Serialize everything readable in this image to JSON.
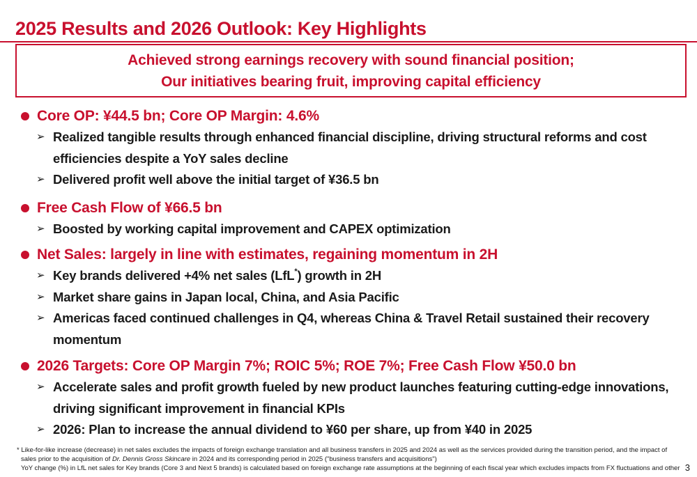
{
  "title": "2025 Results and 2026 Outlook: Key Highlights",
  "highlight": {
    "line1": "Achieved strong earnings recovery with sound financial position;",
    "line2": "Our initiatives bearing fruit, improving capital efficiency"
  },
  "sections": [
    {
      "heading": "Core OP: ¥44.5 bn; Core OP Margin: 4.6%",
      "bullets": [
        {
          "text": "Realized tangible results through enhanced financial discipline, driving structural reforms and cost efficiencies despite a YoY sales decline"
        },
        {
          "text": "Delivered profit well above the initial target of ¥36.5 bn"
        }
      ]
    },
    {
      "heading": "Free Cash Flow of ¥66.5 bn",
      "bullets": [
        {
          "text": "Boosted by working capital improvement and CAPEX optimization"
        }
      ]
    },
    {
      "heading": "Net Sales: largely in line with estimates, regaining momentum in 2H",
      "bullets": [
        {
          "text_before": "Key brands delivered +4% net sales (LfL",
          "sup": "*",
          "text_after": ") growth in 2H"
        },
        {
          "text": "Market share gains in Japan local, China, and Asia Pacific"
        },
        {
          "text": "Americas faced continued challenges in Q4, whereas China & Travel Retail sustained their recovery momentum"
        }
      ]
    },
    {
      "heading": "2026 Targets: Core OP Margin 7%; ROIC 5%; ROE 7%; Free Cash Flow ¥50.0 bn",
      "bullets": [
        {
          "text": "Accelerate sales and profit growth fueled by new product launches featuring cutting-edge innovations, driving significant improvement in financial KPIs"
        },
        {
          "text": "2026: Plan to increase the annual dividend to ¥60 per share, up from ¥40 in 2025"
        }
      ]
    }
  ],
  "arrow_glyph": "➢",
  "footnote": {
    "line1": "* Like-for-like increase (decrease) in net sales excludes the impacts of foreign exchange translation and all business transfers in 2025 and 2024 as well as the services provided during the transition period, and the impact of",
    "line2_before": "sales prior to the acquisition of ",
    "line2_italic": "Dr. Dennis Gross Skincare",
    "line2_after": " in 2024 and its corresponding period in 2025 (\"business transfers and acquisitions\")",
    "line3": "YoY change (%) in LfL net sales for Key brands (Core 3 and Next 5 brands) is calculated based on foreign exchange rate assumptions at the beginning of each fiscal year which excludes impacts from FX fluctuations and other"
  },
  "page_number": "3",
  "colors": {
    "accent": "#c8102e",
    "text": "#1a1a1a"
  }
}
